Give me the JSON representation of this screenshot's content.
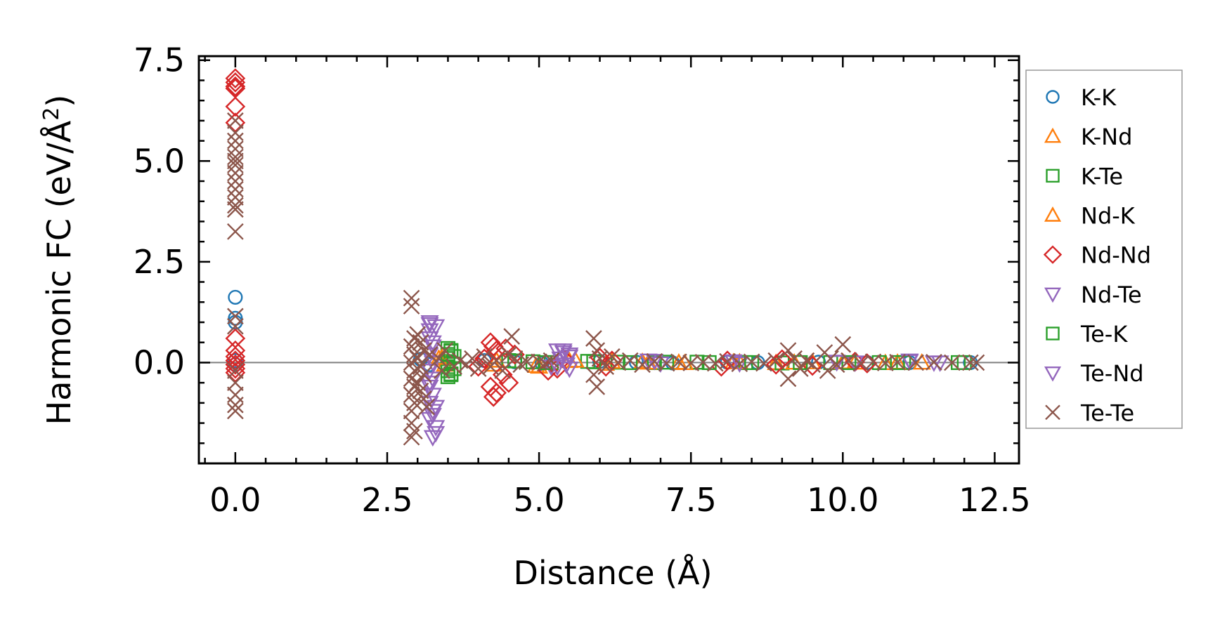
{
  "chart_data": {
    "type": "scatter",
    "xlabel": "Distance (Å)",
    "ylabel_main": "Harmonic FC (eV/Å",
    "ylabel_sup": "2",
    "ylabel_end": ")",
    "xlim": [
      -0.6,
      12.9
    ],
    "ylim": [
      -2.5,
      7.6
    ],
    "xticks": [
      0.0,
      2.5,
      5.0,
      7.5,
      10.0,
      12.5
    ],
    "xtick_labels": [
      "0.0",
      "2.5",
      "5.0",
      "7.5",
      "10.0",
      "12.5"
    ],
    "yticks": [
      0.0,
      2.5,
      5.0,
      7.5
    ],
    "ytick_labels": [
      "0.0",
      "2.5",
      "5.0",
      "7.5"
    ],
    "zero_line": true,
    "grid": false,
    "legend_position": "outside-right",
    "series": [
      {
        "name": "K-K",
        "marker": "circle",
        "color": "#1f77b4",
        "points": [
          [
            0,
            1.62
          ],
          [
            0,
            1.1
          ],
          [
            0,
            1.0
          ],
          [
            0,
            0.05
          ],
          [
            0,
            -0.05
          ],
          [
            3.05,
            0.08
          ],
          [
            3.2,
            -0.05
          ],
          [
            4.1,
            0.05
          ],
          [
            4.6,
            0.02
          ],
          [
            5.05,
            -0.02
          ],
          [
            6.0,
            0.03
          ],
          [
            6.6,
            0.01
          ],
          [
            7.2,
            -0.01
          ],
          [
            8.1,
            0.01
          ],
          [
            8.6,
            0.0
          ],
          [
            9.6,
            0.01
          ],
          [
            10.4,
            0.0
          ],
          [
            11.1,
            0.0
          ],
          [
            12.1,
            0.0
          ]
        ]
      },
      {
        "name": "K-Nd",
        "marker": "triangle-up",
        "color": "#ff7f0e",
        "points": [
          [
            3.35,
            0.1
          ],
          [
            3.45,
            -0.05
          ],
          [
            4.3,
            0.05
          ],
          [
            4.95,
            -0.08
          ],
          [
            5.5,
            0.04
          ],
          [
            6.1,
            -0.03
          ],
          [
            6.7,
            0.02
          ],
          [
            7.3,
            0.0
          ],
          [
            8.2,
            0.01
          ],
          [
            8.9,
            -0.01
          ],
          [
            9.5,
            0.01
          ],
          [
            10.2,
            0.0
          ],
          [
            10.7,
            -0.01
          ],
          [
            11.3,
            0.0
          ]
        ]
      },
      {
        "name": "K-Te",
        "marker": "square",
        "color": "#2ca02c",
        "points": [
          [
            3.5,
            0.35
          ],
          [
            3.5,
            0.2
          ],
          [
            3.5,
            0.1
          ],
          [
            3.5,
            0.0
          ],
          [
            3.5,
            -0.1
          ],
          [
            3.5,
            -0.2
          ],
          [
            3.5,
            -0.35
          ],
          [
            3.55,
            0.28
          ],
          [
            3.55,
            -0.28
          ],
          [
            4.5,
            0.05
          ],
          [
            4.9,
            0.02
          ],
          [
            5.2,
            0.0
          ],
          [
            5.8,
            0.03
          ],
          [
            6.3,
            0.01
          ],
          [
            6.9,
            0.0
          ],
          [
            7.6,
            0.01
          ],
          [
            8.4,
            0.0
          ],
          [
            9.0,
            -0.01
          ],
          [
            9.8,
            0.0
          ],
          [
            10.6,
            0.0
          ],
          [
            11.0,
            0.0
          ],
          [
            12.0,
            0.0
          ]
        ]
      },
      {
        "name": "Nd-K",
        "marker": "triangle-up",
        "color": "#ff7f0e",
        "points": [
          [
            3.4,
            0.12
          ],
          [
            4.25,
            -0.05
          ],
          [
            5.0,
            -0.1
          ],
          [
            5.6,
            0.05
          ],
          [
            6.2,
            0.02
          ],
          [
            6.8,
            0.0
          ],
          [
            7.4,
            -0.01
          ],
          [
            8.3,
            0.01
          ],
          [
            9.2,
            0.0
          ],
          [
            10.0,
            0.01
          ],
          [
            10.9,
            0.0
          ]
        ]
      },
      {
        "name": "Nd-Nd",
        "marker": "diamond",
        "color": "#d62728",
        "points": [
          [
            0,
            7.05
          ],
          [
            0,
            6.95
          ],
          [
            0,
            6.85
          ],
          [
            0,
            6.8
          ],
          [
            0,
            6.35
          ],
          [
            0,
            5.95
          ],
          [
            0,
            0.6
          ],
          [
            0,
            0.3
          ],
          [
            0,
            0.15
          ],
          [
            0,
            0.05
          ],
          [
            0,
            -0.05
          ],
          [
            0,
            -0.15
          ],
          [
            0,
            -0.25
          ],
          [
            4.2,
            0.5
          ],
          [
            4.25,
            0.4
          ],
          [
            4.3,
            0.3
          ],
          [
            4.2,
            -0.6
          ],
          [
            4.25,
            -0.85
          ],
          [
            4.3,
            -0.75
          ],
          [
            4.45,
            0.35
          ],
          [
            4.5,
            -0.5
          ],
          [
            4.6,
            0.2
          ],
          [
            4.4,
            -0.3
          ],
          [
            4.1,
            0.1
          ],
          [
            4.0,
            -0.1
          ],
          [
            5.15,
            -0.2
          ],
          [
            5.3,
            -0.15
          ],
          [
            5.4,
            0.1
          ],
          [
            6.0,
            0.12
          ],
          [
            6.1,
            -0.1
          ],
          [
            6.2,
            0.05
          ],
          [
            8.0,
            -0.1
          ],
          [
            8.1,
            0.05
          ],
          [
            8.9,
            -0.05
          ],
          [
            9.0,
            0.08
          ],
          [
            9.5,
            -0.08
          ],
          [
            10.2,
            0.02
          ],
          [
            10.4,
            -0.02
          ]
        ]
      },
      {
        "name": "Nd-Te",
        "marker": "triangle-down",
        "color": "#9467bd",
        "points": [
          [
            3.2,
            1.0
          ],
          [
            3.2,
            0.8
          ],
          [
            3.2,
            0.6
          ],
          [
            3.25,
            0.4
          ],
          [
            3.2,
            0.2
          ],
          [
            3.25,
            0.0
          ],
          [
            3.2,
            -0.2
          ],
          [
            3.25,
            -0.4
          ],
          [
            3.2,
            -0.6
          ],
          [
            3.25,
            -0.8
          ],
          [
            3.2,
            -1.0
          ],
          [
            3.25,
            -1.2
          ],
          [
            3.2,
            -1.4
          ],
          [
            3.3,
            -1.75
          ],
          [
            3.25,
            -1.85
          ],
          [
            3.3,
            0.9
          ],
          [
            3.3,
            -1.1
          ],
          [
            5.3,
            0.3
          ],
          [
            5.4,
            0.25
          ],
          [
            5.5,
            0.2
          ],
          [
            5.35,
            0.1
          ],
          [
            5.45,
            -0.05
          ],
          [
            5.5,
            -0.15
          ],
          [
            5.2,
            -0.1
          ],
          [
            6.8,
            0.05
          ],
          [
            7.0,
            -0.02
          ],
          [
            8.2,
            0.03
          ],
          [
            8.3,
            -0.02
          ],
          [
            9.9,
            0.02
          ],
          [
            10.2,
            0.0
          ],
          [
            11.1,
            0.05
          ],
          [
            11.6,
            0.0
          ]
        ]
      },
      {
        "name": "Te-K",
        "marker": "square",
        "color": "#2ca02c",
        "points": [
          [
            3.55,
            0.3
          ],
          [
            3.55,
            -0.3
          ],
          [
            3.6,
            0.15
          ],
          [
            3.6,
            -0.15
          ],
          [
            4.6,
            0.04
          ],
          [
            5.1,
            0.0
          ],
          [
            5.9,
            0.02
          ],
          [
            6.5,
            0.0
          ],
          [
            7.1,
            0.01
          ],
          [
            7.8,
            0.0
          ],
          [
            8.5,
            0.0
          ],
          [
            9.3,
            0.0
          ],
          [
            10.1,
            0.0
          ],
          [
            10.9,
            0.0
          ],
          [
            11.9,
            0.0
          ]
        ]
      },
      {
        "name": "Te-Nd",
        "marker": "triangle-down",
        "color": "#9467bd",
        "points": [
          [
            3.2,
            0.95
          ],
          [
            3.25,
            0.5
          ],
          [
            3.2,
            -0.5
          ],
          [
            3.25,
            -1.3
          ],
          [
            3.3,
            -1.6
          ],
          [
            5.4,
            0.3
          ],
          [
            5.5,
            0.15
          ],
          [
            5.3,
            -0.1
          ],
          [
            6.9,
            0.04
          ],
          [
            8.2,
            0.02
          ],
          [
            9.9,
            0.01
          ],
          [
            11.1,
            0.03
          ],
          [
            11.5,
            0.0
          ]
        ]
      },
      {
        "name": "Te-Te",
        "marker": "x",
        "color": "#8c564b",
        "points": [
          [
            0,
            6.0
          ],
          [
            0,
            5.7
          ],
          [
            0,
            5.5
          ],
          [
            0,
            5.3
          ],
          [
            0,
            5.1
          ],
          [
            0,
            5.0
          ],
          [
            0,
            4.9
          ],
          [
            0,
            4.7
          ],
          [
            0,
            4.5
          ],
          [
            0,
            4.3
          ],
          [
            0,
            4.1
          ],
          [
            0,
            3.9
          ],
          [
            0,
            3.8
          ],
          [
            0,
            3.25
          ],
          [
            0,
            1.15
          ],
          [
            0,
            0.9
          ],
          [
            0,
            -0.2
          ],
          [
            0,
            -0.5
          ],
          [
            0,
            -0.8
          ],
          [
            0,
            -1.05
          ],
          [
            0,
            -1.2
          ],
          [
            2.9,
            1.6
          ],
          [
            2.9,
            1.4
          ],
          [
            2.95,
            0.6
          ],
          [
            2.9,
            0.4
          ],
          [
            2.95,
            0.2
          ],
          [
            2.9,
            0.0
          ],
          [
            2.95,
            -0.2
          ],
          [
            2.9,
            -0.4
          ],
          [
            2.95,
            -0.6
          ],
          [
            2.9,
            -0.8
          ],
          [
            2.95,
            -1.0
          ],
          [
            2.9,
            -1.2
          ],
          [
            2.9,
            -1.5
          ],
          [
            2.95,
            -1.7
          ],
          [
            2.9,
            -1.85
          ],
          [
            3.0,
            0.7
          ],
          [
            3.05,
            0.5
          ],
          [
            3.1,
            0.3
          ],
          [
            3.0,
            0.1
          ],
          [
            3.05,
            -0.1
          ],
          [
            3.1,
            -0.3
          ],
          [
            3.0,
            -0.5
          ],
          [
            3.05,
            -0.7
          ],
          [
            3.1,
            -0.9
          ],
          [
            3.15,
            -1.1
          ],
          [
            3.2,
            0.2
          ],
          [
            3.35,
            0.1
          ],
          [
            3.4,
            -0.2
          ],
          [
            3.45,
            0.3
          ],
          [
            3.6,
            -0.1
          ],
          [
            3.7,
            0.05
          ],
          [
            3.8,
            -0.05
          ],
          [
            3.9,
            0.1
          ],
          [
            4.0,
            -0.15
          ],
          [
            4.1,
            0.15
          ],
          [
            4.2,
            -0.1
          ],
          [
            4.3,
            0.05
          ],
          [
            4.4,
            -0.2
          ],
          [
            4.5,
            0.2
          ],
          [
            4.6,
            0.1
          ],
          [
            4.55,
            0.65
          ],
          [
            4.7,
            -0.05
          ],
          [
            4.8,
            0.02
          ],
          [
            5.0,
            0.02
          ],
          [
            5.1,
            -0.02
          ],
          [
            5.2,
            0.05
          ],
          [
            5.9,
            0.6
          ],
          [
            5.95,
            0.3
          ],
          [
            5.9,
            -0.3
          ],
          [
            5.95,
            -0.6
          ],
          [
            6.0,
            0.1
          ],
          [
            6.1,
            -0.1
          ],
          [
            6.2,
            0.15
          ],
          [
            6.3,
            0.0
          ],
          [
            6.5,
            0.05
          ],
          [
            6.7,
            -0.05
          ],
          [
            6.9,
            0.03
          ],
          [
            7.1,
            -0.02
          ],
          [
            7.3,
            0.02
          ],
          [
            7.5,
            -0.01
          ],
          [
            7.7,
            0.01
          ],
          [
            7.9,
            -0.02
          ],
          [
            8.1,
            0.03
          ],
          [
            8.3,
            -0.03
          ],
          [
            8.5,
            0.02
          ],
          [
            8.7,
            -0.02
          ],
          [
            8.9,
            0.05
          ],
          [
            9.1,
            0.3
          ],
          [
            9.1,
            -0.4
          ],
          [
            9.2,
            0.1
          ],
          [
            9.3,
            -0.15
          ],
          [
            9.4,
            0.05
          ],
          [
            9.5,
            -0.05
          ],
          [
            9.7,
            0.25
          ],
          [
            9.75,
            -0.2
          ],
          [
            9.8,
            0.1
          ],
          [
            10.0,
            0.45
          ],
          [
            9.9,
            -0.05
          ],
          [
            10.1,
            0.05
          ],
          [
            10.3,
            -0.02
          ],
          [
            10.5,
            0.02
          ],
          [
            10.7,
            -0.01
          ],
          [
            10.9,
            0.01
          ],
          [
            11.2,
            0.0
          ],
          [
            11.5,
            0.01
          ],
          [
            11.8,
            0.0
          ],
          [
            12.1,
            0.0
          ],
          [
            12.2,
            0.0
          ]
        ]
      }
    ]
  }
}
